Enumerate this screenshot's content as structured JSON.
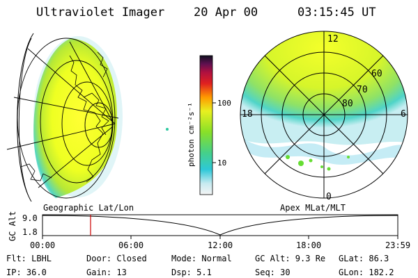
{
  "header": {
    "instrument": "Ultraviolet Imager",
    "date": "20 Apr 00",
    "time": "03:15:45 UT"
  },
  "left_panel": {
    "label": "Geographic Lat/Lon"
  },
  "right_panel": {
    "label": "Apex MLat/MLT",
    "mlt_labels": {
      "top": "12",
      "left": "18",
      "right": "6",
      "bottom": "0"
    },
    "lat_labels": [
      "60",
      "70",
      "80"
    ]
  },
  "colorbar": {
    "unit_label": "photon cm⁻²s⁻¹",
    "ticks": [
      "100",
      "10"
    ]
  },
  "timeline": {
    "axis_label": "GC Alt",
    "y_ticks": [
      "9.0",
      "1.8"
    ],
    "x_ticks": [
      "00:00",
      "06:00",
      "12:00",
      "18:00",
      "23:59"
    ],
    "current_marker_time": "03:15"
  },
  "info": {
    "row1": [
      "Flt: LBHL",
      "Door: Closed",
      "Mode: Normal",
      "GC Alt: 9.3 Re",
      "GLat:  86.3"
    ],
    "row2": [
      "IP: 36.0",
      "Gain: 13",
      "Dsp:    5.1",
      "Seq: 30",
      "GLon: 182.2"
    ]
  },
  "colors": {
    "marker": "#cc0000",
    "grid": "#000000"
  }
}
